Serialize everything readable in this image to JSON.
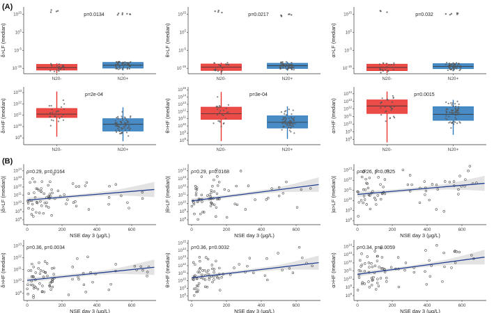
{
  "sections": [
    "(A)",
    "(B)"
  ],
  "colors": {
    "n20_minus": "#e8332f",
    "n20_plus": "#2f7bbd",
    "regression_line": "#1f3d8f",
    "ci_band": "#d9d9d9",
    "axis": "#333333"
  },
  "chart_data": [
    {
      "type": "box",
      "section": "A",
      "ylabel": "δ>LF (median)",
      "pvalue": "p=0.0134",
      "categories": [
        "N20-",
        "N20+"
      ],
      "ytick_exps": [
        "15",
        "5",
        "-5",
        "-15"
      ],
      "ylim": [
        -18,
        19
      ],
      "yticks": [
        15,
        5,
        -5,
        -15
      ],
      "boxes": [
        {
          "q1": -16,
          "median": -14.6,
          "q3": -12.8,
          "low": -17.6,
          "high": -12.2
        },
        {
          "q1": -14.9,
          "median": -13.3,
          "q3": -11.7,
          "low": -16.2,
          "high": -11.4
        }
      ],
      "n_points": [
        20,
        50
      ],
      "outliers": [
        [
          16.8,
          16.1,
          17.3,
          16.5
        ],
        [
          14.8,
          15.2,
          15.6,
          14.6,
          15.0,
          15.4,
          14.9
        ]
      ]
    },
    {
      "type": "box",
      "section": "A",
      "ylabel": "θ>LF (median)",
      "pvalue": "p=0.0217",
      "categories": [
        "N20-",
        "N20+"
      ],
      "ytick_exps": [
        "15",
        "5",
        "-5",
        "-15"
      ],
      "ylim": [
        -18,
        19
      ],
      "yticks": [
        15,
        5,
        -5,
        -15
      ],
      "boxes": [
        {
          "q1": -16.2,
          "median": -14.4,
          "q3": -12.6,
          "low": -17.8,
          "high": -11.9
        },
        {
          "q1": -15.1,
          "median": -13.6,
          "q3": -12.2,
          "low": -16.3,
          "high": -11.4
        }
      ],
      "n_points": [
        20,
        50
      ],
      "outliers": [
        [
          17.0,
          16.2,
          16.6,
          15.9
        ],
        [
          14.1,
          14.6,
          15.0,
          14.4,
          13.8,
          14.9
        ]
      ]
    },
    {
      "type": "box",
      "section": "A",
      "ylabel": "α>LF (median)",
      "pvalue": "p=0.032",
      "categories": [
        "N20-",
        "N20+"
      ],
      "ytick_exps": [
        "15",
        "5",
        "-5",
        "-15"
      ],
      "ylim": [
        -18,
        19
      ],
      "yticks": [
        15,
        5,
        -5,
        -15
      ],
      "boxes": [
        {
          "q1": -16.3,
          "median": -14.5,
          "q3": -12.7,
          "low": -17.6,
          "high": -12.1
        },
        {
          "q1": -15.2,
          "median": -13.9,
          "q3": -12.4,
          "low": -16.5,
          "high": -11.8
        }
      ],
      "n_points": [
        20,
        50
      ],
      "outliers": [
        [
          16.6,
          16.1,
          16.9
        ],
        [
          15.2,
          15.6,
          14.9,
          15.4,
          15.1,
          14.7
        ]
      ]
    },
    {
      "type": "box",
      "section": "A",
      "ylabel": "δ>HF (median)",
      "pvalue": "p=2e-04",
      "categories": [
        "N20-",
        "N20+"
      ],
      "ytick_exps": [
        "13",
        "12",
        "11",
        "10",
        "9"
      ],
      "ylim": [
        8.4,
        13.5
      ],
      "yticks": [
        13,
        12,
        11,
        10,
        9
      ],
      "boxes": [
        {
          "q1": 10.8,
          "median": 11.1,
          "q3": 11.6,
          "low": 9.1,
          "high": 13.1
        },
        {
          "q1": 9.6,
          "median": 10.2,
          "q3": 10.7,
          "low": 8.7,
          "high": 11.7
        }
      ],
      "n_points": [
        26,
        60
      ],
      "outliers": [
        [],
        []
      ]
    },
    {
      "type": "box",
      "section": "A",
      "ylabel": "θ>HF (median)",
      "pvalue": "p=3e-04",
      "categories": [
        "N20-",
        "N20+"
      ],
      "ytick_exps": [
        "15",
        "14",
        "13",
        "12",
        "11",
        "10",
        "9",
        "8"
      ],
      "ylim": [
        7.4,
        15.4
      ],
      "yticks": [
        15,
        14,
        13,
        12,
        11,
        10,
        9,
        8
      ],
      "boxes": [
        {
          "q1": 10.9,
          "median": 11.7,
          "q3": 12.6,
          "low": 7.9,
          "high": 14.7
        },
        {
          "q1": 9.7,
          "median": 10.5,
          "q3": 11.4,
          "low": 8.2,
          "high": 12.7
        }
      ],
      "n_points": [
        26,
        60
      ],
      "outliers": [
        [],
        []
      ]
    },
    {
      "type": "box",
      "section": "A",
      "ylabel": "α>HF (median)",
      "pvalue": "p=0.0015",
      "categories": [
        "N20-",
        "N20+"
      ],
      "ytick_exps": [
        "14",
        "13",
        "12",
        "11",
        "10",
        "9",
        "8"
      ],
      "ylim": [
        7.3,
        14.9
      ],
      "yticks": [
        14,
        13,
        12,
        11,
        10,
        9,
        8
      ],
      "boxes": [
        {
          "q1": 11.4,
          "median": 12.4,
          "q3": 13.2,
          "low": 7.6,
          "high": 14.3
        },
        {
          "q1": 10.5,
          "median": 11.3,
          "q3": 12.3,
          "low": 8.6,
          "high": 13.2
        }
      ],
      "n_points": [
        26,
        60
      ],
      "outliers": [
        [],
        []
      ]
    },
    {
      "type": "scatter",
      "section": "B",
      "ylabel": "|δ>LF (median)|",
      "xlabel": "NSE day 3 (μg/L)",
      "annotation": "ρ=0.29, p=0.0164",
      "xlim": [
        -20,
        740
      ],
      "ylim": [
        7.4,
        14.8
      ],
      "xticks": [
        0,
        200,
        400,
        600
      ],
      "xtick_labels": [
        "0",
        "200",
        "400",
        "600"
      ],
      "yticks": [
        14,
        13,
        12,
        11,
        10,
        9,
        8
      ],
      "ytick_exps": [
        "14",
        "13",
        "12",
        "11",
        "10",
        "9",
        "8"
      ],
      "fit": {
        "x": [
          0,
          730
        ],
        "y": [
          10.4,
          11.7
        ]
      },
      "band": [
        0.5,
        0.2,
        0.9
      ],
      "n_points": 70
    },
    {
      "type": "scatter",
      "section": "B",
      "ylabel": "|θ>LF (median)|",
      "xlabel": "NSE day 3 (μg/L)",
      "annotation": "ρ=0.29, p=0.0168",
      "xlim": [
        -20,
        740
      ],
      "ylim": [
        7.4,
        14.8
      ],
      "xticks": [
        0,
        200,
        400,
        600
      ],
      "xtick_labels": [
        "0",
        "200",
        "400",
        "600"
      ],
      "yticks": [
        14,
        13,
        12,
        11,
        10,
        9,
        8
      ],
      "ytick_exps": [
        "14",
        "13",
        "12",
        "11",
        "10",
        "9",
        "8"
      ],
      "fit": {
        "x": [
          0,
          730
        ],
        "y": [
          10.3,
          12.3
        ]
      },
      "band": [
        0.45,
        0.2,
        0.9
      ],
      "n_points": 70
    },
    {
      "type": "scatter",
      "section": "B",
      "ylabel": "|α>LF (median)|",
      "xlabel": "NSE day 3 (μg/L)",
      "annotation": "ρ=0.26, p=0.0325",
      "xlim": [
        -20,
        740
      ],
      "ylim": [
        7.6,
        13.6
      ],
      "xticks": [
        0,
        200,
        400,
        600
      ],
      "xtick_labels": [
        "0",
        "200",
        "400",
        "600"
      ],
      "yticks": [
        13,
        12,
        11,
        10,
        9,
        8
      ],
      "ytick_exps": [
        "13",
        "12",
        "11",
        "10",
        "9",
        "8"
      ],
      "fit": {
        "x": [
          0,
          730
        ],
        "y": [
          10.6,
          11.7
        ]
      },
      "band": [
        0.35,
        0.18,
        0.8
      ],
      "n_points": 70
    },
    {
      "type": "scatter",
      "section": "B",
      "ylabel": "δ>HF (median)",
      "xlabel": "NSE day 3 (μg/L)",
      "annotation": "ρ=0.36, p=0.0034",
      "xlim": [
        -20,
        740
      ],
      "ylim": [
        8.4,
        13.5
      ],
      "xticks": [
        0,
        200,
        400,
        600
      ],
      "xtick_labels": [
        "0",
        "200",
        "400",
        "600"
      ],
      "yticks": [
        13,
        12,
        11,
        10,
        9
      ],
      "ytick_exps": [
        "13",
        "12",
        "11",
        "10",
        "9"
      ],
      "fit": {
        "x": [
          0,
          730
        ],
        "y": [
          10.1,
          11.2
        ]
      },
      "band": [
        0.3,
        0.15,
        0.75
      ],
      "n_points": 75
    },
    {
      "type": "scatter",
      "section": "B",
      "ylabel": "θ>HF (median)",
      "xlabel": "NSE day 3 (μg/L)",
      "annotation": "ρ=0.36, p=0.0032",
      "xlim": [
        -20,
        740
      ],
      "ylim": [
        7.4,
        15.4
      ],
      "xticks": [
        0,
        200,
        400,
        600
      ],
      "xtick_labels": [
        "0",
        "200",
        "400",
        "600"
      ],
      "yticks": [
        15,
        14,
        13,
        12,
        11,
        10,
        9,
        8
      ],
      "ytick_exps": [
        "15",
        "14",
        "13",
        "12",
        "11",
        "10",
        "9",
        "8"
      ],
      "fit": {
        "x": [
          0,
          730
        ],
        "y": [
          10.4,
          12.4
        ]
      },
      "band": [
        0.45,
        0.22,
        1.0
      ],
      "n_points": 75
    },
    {
      "type": "scatter",
      "section": "B",
      "ylabel": "α>HF (median)",
      "xlabel": "NSE day 3 (μg/L)",
      "annotation": "ρ=0.34, p=0.0059",
      "xlim": [
        -20,
        740
      ],
      "ylim": [
        7.4,
        14.8
      ],
      "xticks": [
        0,
        200,
        400,
        600
      ],
      "xtick_labels": [
        "0",
        "200",
        "400",
        "600"
      ],
      "yticks": [
        14,
        13,
        12,
        11,
        10,
        9,
        8
      ],
      "ytick_exps": [
        "14",
        "13",
        "12",
        "11",
        "10",
        "9",
        "8"
      ],
      "fit": {
        "x": [
          0,
          730
        ],
        "y": [
          10.6,
          12.7
        ]
      },
      "band": [
        0.45,
        0.2,
        0.95
      ],
      "n_points": 75
    }
  ]
}
